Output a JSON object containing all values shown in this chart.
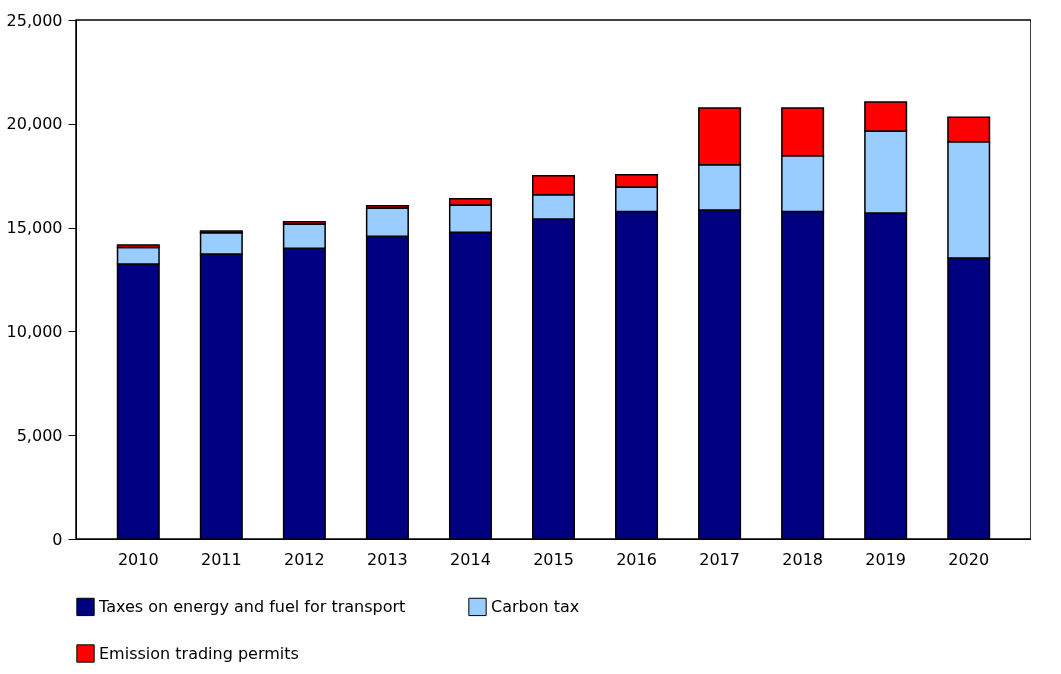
{
  "chart_data": {
    "type": "bar",
    "stacked": true,
    "categories": [
      "2010",
      "2011",
      "2012",
      "2013",
      "2014",
      "2015",
      "2016",
      "2017",
      "2018",
      "2019",
      "2020"
    ],
    "series": [
      {
        "name": "Taxes on energy and fuel for transport",
        "color": "#000080",
        "values": [
          13250,
          13730,
          14000,
          14580,
          14770,
          15410,
          15770,
          15850,
          15770,
          15700,
          13540
        ]
      },
      {
        "name": "Carbon tax",
        "color": "#99ccff",
        "values": [
          790,
          1020,
          1170,
          1360,
          1320,
          1170,
          1190,
          2180,
          2690,
          3950,
          5600
        ]
      },
      {
        "name": "Emission trading permits",
        "color": "#ff0000",
        "values": [
          120,
          90,
          110,
          110,
          300,
          920,
          590,
          2730,
          2300,
          1400,
          1170
        ]
      }
    ],
    "ylim": [
      0,
      25000
    ],
    "yticks": [
      0,
      {
        "value": 5000,
        "label": "5,000"
      },
      {
        "value": 10000,
        "label": "10,000"
      },
      {
        "value": 15000,
        "label": "15,000"
      },
      {
        "value": 20000,
        "label": "20,000"
      },
      {
        "value": 25000,
        "label": "25,000"
      }
    ],
    "grid": false,
    "legend": "bottom"
  }
}
